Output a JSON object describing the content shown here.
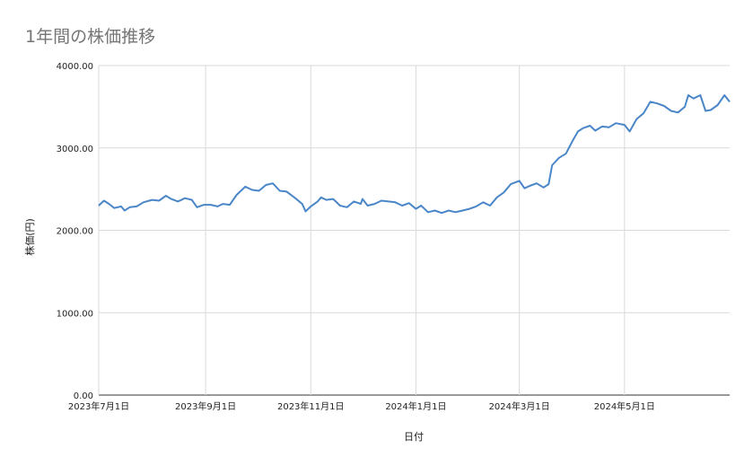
{
  "chart_data": {
    "type": "line",
    "title": "1年間の株価推移",
    "xlabel": "日付",
    "ylabel": "株価(円)",
    "ylim": [
      0,
      4000
    ],
    "yticks": [
      "0.00",
      "1000.00",
      "2000.00",
      "3000.00",
      "4000.00"
    ],
    "ytick_values": [
      0,
      1000,
      2000,
      3000,
      4000
    ],
    "xlim": [
      "2023-07-01",
      "2024-06-30"
    ],
    "xticks": [
      {
        "date": "2023-07-01",
        "label": "2023年7月1日"
      },
      {
        "date": "2023-09-01",
        "label": "2023年9月1日"
      },
      {
        "date": "2023-11-01",
        "label": "2023年11月1日"
      },
      {
        "date": "2024-01-01",
        "label": "2024年1月1日"
      },
      {
        "date": "2024-03-01",
        "label": "2024年3月1日"
      },
      {
        "date": "2024-05-01",
        "label": "2024年5月1日"
      }
    ],
    "grid": true,
    "line_color": "#4a86c8",
    "series": [
      {
        "points": [
          [
            "2023-07-01",
            2300
          ],
          [
            "2023-07-04",
            2360
          ],
          [
            "2023-07-07",
            2320
          ],
          [
            "2023-07-10",
            2270
          ],
          [
            "2023-07-14",
            2290
          ],
          [
            "2023-07-16",
            2240
          ],
          [
            "2023-07-19",
            2280
          ],
          [
            "2023-07-23",
            2290
          ],
          [
            "2023-07-27",
            2340
          ],
          [
            "2023-08-01",
            2370
          ],
          [
            "2023-08-05",
            2360
          ],
          [
            "2023-08-09",
            2420
          ],
          [
            "2023-08-12",
            2380
          ],
          [
            "2023-08-16",
            2350
          ],
          [
            "2023-08-20",
            2390
          ],
          [
            "2023-08-24",
            2370
          ],
          [
            "2023-08-27",
            2280
          ],
          [
            "2023-08-31",
            2310
          ],
          [
            "2023-09-04",
            2310
          ],
          [
            "2023-09-08",
            2290
          ],
          [
            "2023-09-11",
            2320
          ],
          [
            "2023-09-15",
            2310
          ],
          [
            "2023-09-19",
            2430
          ],
          [
            "2023-09-24",
            2530
          ],
          [
            "2023-09-28",
            2490
          ],
          [
            "2023-10-02",
            2480
          ],
          [
            "2023-10-06",
            2550
          ],
          [
            "2023-10-10",
            2570
          ],
          [
            "2023-10-14",
            2480
          ],
          [
            "2023-10-18",
            2470
          ],
          [
            "2023-10-23",
            2390
          ],
          [
            "2023-10-27",
            2320
          ],
          [
            "2023-10-29",
            2230
          ],
          [
            "2023-11-01",
            2290
          ],
          [
            "2023-11-05",
            2350
          ],
          [
            "2023-11-07",
            2400
          ],
          [
            "2023-11-10",
            2370
          ],
          [
            "2023-11-14",
            2380
          ],
          [
            "2023-11-18",
            2300
          ],
          [
            "2023-11-22",
            2280
          ],
          [
            "2023-11-26",
            2350
          ],
          [
            "2023-11-30",
            2320
          ],
          [
            "2023-12-01",
            2380
          ],
          [
            "2023-12-04",
            2300
          ],
          [
            "2023-12-08",
            2320
          ],
          [
            "2023-12-12",
            2360
          ],
          [
            "2023-12-16",
            2350
          ],
          [
            "2023-12-20",
            2340
          ],
          [
            "2023-12-24",
            2300
          ],
          [
            "2023-12-28",
            2330
          ],
          [
            "2024-01-01",
            2260
          ],
          [
            "2024-01-04",
            2300
          ],
          [
            "2024-01-08",
            2220
          ],
          [
            "2024-01-12",
            2240
          ],
          [
            "2024-01-16",
            2210
          ],
          [
            "2024-01-20",
            2240
          ],
          [
            "2024-01-24",
            2220
          ],
          [
            "2024-01-28",
            2240
          ],
          [
            "2024-02-01",
            2260
          ],
          [
            "2024-02-05",
            2290
          ],
          [
            "2024-02-09",
            2340
          ],
          [
            "2024-02-13",
            2300
          ],
          [
            "2024-02-17",
            2400
          ],
          [
            "2024-02-21",
            2460
          ],
          [
            "2024-02-25",
            2560
          ],
          [
            "2024-03-01",
            2600
          ],
          [
            "2024-03-04",
            2510
          ],
          [
            "2024-03-07",
            2540
          ],
          [
            "2024-03-11",
            2570
          ],
          [
            "2024-03-15",
            2520
          ],
          [
            "2024-03-18",
            2560
          ],
          [
            "2024-03-20",
            2790
          ],
          [
            "2024-03-24",
            2880
          ],
          [
            "2024-03-28",
            2930
          ],
          [
            "2024-04-01",
            3090
          ],
          [
            "2024-04-04",
            3200
          ],
          [
            "2024-04-07",
            3240
          ],
          [
            "2024-04-11",
            3270
          ],
          [
            "2024-04-14",
            3210
          ],
          [
            "2024-04-18",
            3260
          ],
          [
            "2024-04-22",
            3250
          ],
          [
            "2024-04-26",
            3300
          ],
          [
            "2024-05-01",
            3280
          ],
          [
            "2024-05-04",
            3200
          ],
          [
            "2024-05-08",
            3350
          ],
          [
            "2024-05-12",
            3420
          ],
          [
            "2024-05-16",
            3560
          ],
          [
            "2024-05-20",
            3540
          ],
          [
            "2024-05-24",
            3510
          ],
          [
            "2024-05-28",
            3450
          ],
          [
            "2024-06-01",
            3430
          ],
          [
            "2024-06-05",
            3500
          ],
          [
            "2024-06-07",
            3640
          ],
          [
            "2024-06-10",
            3600
          ],
          [
            "2024-06-14",
            3640
          ],
          [
            "2024-06-17",
            3450
          ],
          [
            "2024-06-20",
            3460
          ],
          [
            "2024-06-24",
            3520
          ],
          [
            "2024-06-28",
            3640
          ],
          [
            "2024-07-01",
            3560
          ]
        ]
      }
    ]
  }
}
